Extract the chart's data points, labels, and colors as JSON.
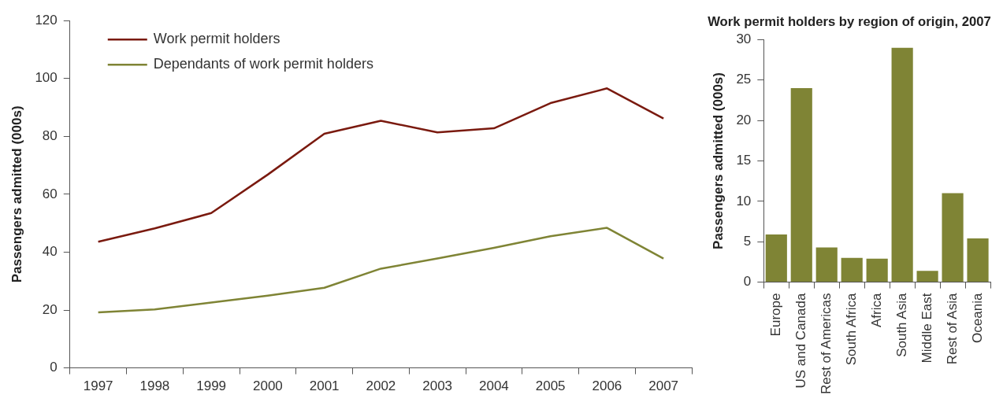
{
  "chart_data": [
    {
      "type": "line",
      "categories": [
        "1997",
        "1998",
        "1999",
        "2000",
        "2001",
        "2002",
        "2003",
        "2004",
        "2005",
        "2006",
        "2007"
      ],
      "ylabel": "Passengers admitted (000s)",
      "ylim": [
        0,
        120
      ],
      "yticks": [
        0,
        20,
        40,
        60,
        80,
        100,
        120
      ],
      "grid": false,
      "legend": "top left",
      "marker": "none",
      "line_style": "solid",
      "series": [
        {
          "name": "Work permit holders",
          "color": "#7a1a0f",
          "values": [
            43.6,
            48.2,
            53.5,
            66.8,
            80.9,
            85.4,
            81.4,
            82.8,
            91.5,
            96.6,
            86.2
          ]
        },
        {
          "name": "Dependants of work permit holders",
          "color": "#7f8435",
          "values": [
            19.2,
            20.2,
            22.6,
            25.0,
            27.7,
            34.3,
            37.8,
            41.5,
            45.5,
            48.4,
            37.8
          ]
        }
      ]
    },
    {
      "type": "bar",
      "title": "Work permit holders by region of origin, 2007",
      "categories": [
        "Europe",
        "US and Canada",
        "Rest of Americas",
        "South Africa",
        "Africa",
        "South Asia",
        "Middle East",
        "Rest of Asia",
        "Oceania"
      ],
      "ylabel": "Passengers admitted (000s)",
      "ylim": [
        0,
        30
      ],
      "yticks": [
        0,
        5,
        10,
        15,
        20,
        25,
        30
      ],
      "grid": false,
      "legend": false,
      "color": "#7f8435",
      "values": [
        5.9,
        24,
        4.3,
        3.0,
        2.9,
        29,
        1.4,
        11,
        5.4
      ]
    }
  ]
}
